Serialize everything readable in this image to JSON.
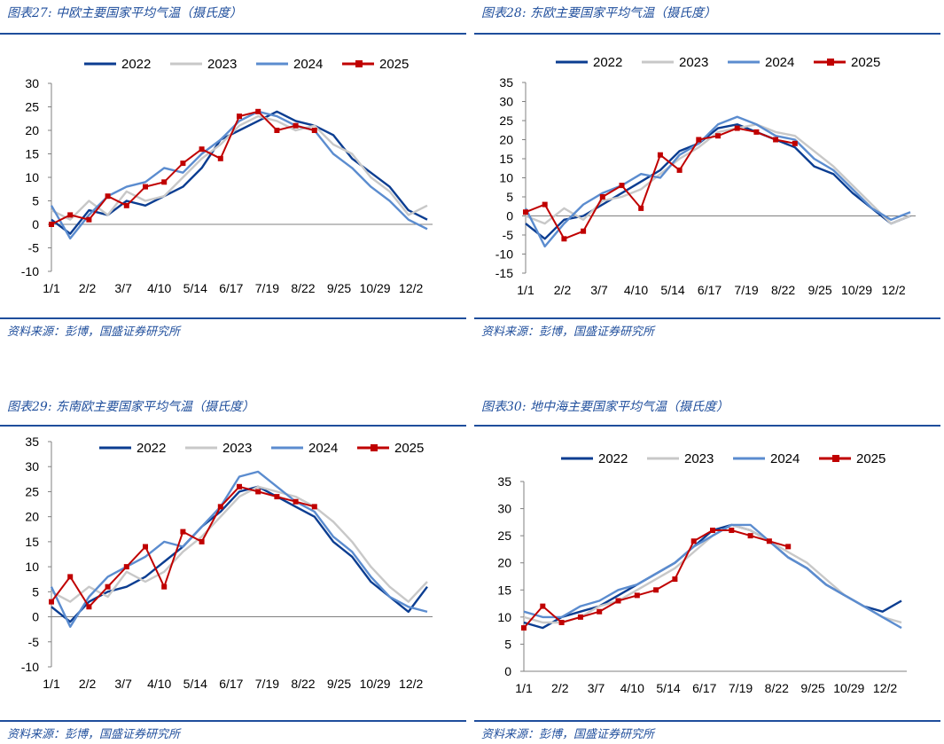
{
  "colors": {
    "s2022": "#0b3d91",
    "s2023": "#c8c8c8",
    "s2024": "#5b8ccf",
    "s2025": "#c00000",
    "accent": "#1f4e9c"
  },
  "panels": [
    {
      "title": "图表27:  中欧主要国家平均气温（摄氏度）",
      "source": "资料来源：彭博，国盛证券研究所"
    },
    {
      "title": "图表28:  东欧主要国家平均气温（摄氏度）",
      "source": "资料来源：彭博，国盛证券研究所"
    },
    {
      "title": "图表29:  东南欧主要国家平均气温（摄氏度）",
      "source": "资料来源：彭博，国盛证券研究所"
    },
    {
      "title": "图表30:  地中海主要国家平均气温（摄氏度）",
      "source": "资料来源：彭博，国盛证券研究所"
    }
  ],
  "chart_data": [
    {
      "type": "line",
      "title": "中欧主要国家平均气温（摄氏度）",
      "x_labels": [
        "1/1",
        "2/2",
        "3/7",
        "4/10",
        "5/14",
        "6/17",
        "7/19",
        "8/22",
        "9/25",
        "10/29",
        "12/2"
      ],
      "ylim": [
        -10,
        30
      ],
      "yticks": [
        -10,
        -5,
        0,
        5,
        10,
        15,
        20,
        25,
        30
      ],
      "series": [
        {
          "name": "2022",
          "values": [
            1,
            -2,
            3,
            2,
            5,
            4,
            6,
            8,
            12,
            18,
            20,
            22,
            24,
            22,
            21,
            19,
            14,
            11,
            8,
            3,
            1
          ]
        },
        {
          "name": "2023",
          "values": [
            3,
            1,
            5,
            2,
            7,
            5,
            6,
            10,
            14,
            17,
            21,
            23,
            22,
            20,
            21,
            17,
            15,
            10,
            7,
            2,
            4
          ]
        },
        {
          "name": "2024",
          "values": [
            4,
            -3,
            2,
            6,
            8,
            9,
            12,
            11,
            15,
            18,
            22,
            24,
            23,
            21,
            20,
            15,
            12,
            8,
            5,
            1,
            -1
          ]
        },
        {
          "name": "2025",
          "values": [
            0,
            2,
            1,
            6,
            4,
            8,
            9,
            13,
            16,
            14,
            23,
            24,
            20,
            21,
            20
          ]
        }
      ]
    },
    {
      "type": "line",
      "title": "东欧主要国家平均气温（摄氏度）",
      "x_labels": [
        "1/1",
        "2/2",
        "3/7",
        "4/10",
        "5/14",
        "6/17",
        "7/19",
        "8/22",
        "9/25",
        "10/29",
        "12/2"
      ],
      "ylim": [
        -15,
        35
      ],
      "yticks": [
        -15,
        -10,
        -5,
        0,
        5,
        10,
        15,
        20,
        25,
        30,
        35
      ],
      "series": [
        {
          "name": "2022",
          "values": [
            -2,
            -6,
            -1,
            0,
            3,
            6,
            9,
            12,
            17,
            19,
            23,
            24,
            22,
            20,
            18,
            13,
            11,
            6,
            2,
            -2,
            0
          ]
        },
        {
          "name": "2023",
          "values": [
            0,
            -2,
            2,
            -1,
            4,
            5,
            7,
            11,
            15,
            18,
            22,
            23,
            24,
            22,
            21,
            17,
            13,
            8,
            3,
            -2,
            0
          ]
        },
        {
          "name": "2024",
          "values": [
            2,
            -8,
            -2,
            3,
            6,
            8,
            11,
            10,
            16,
            19,
            24,
            26,
            24,
            21,
            20,
            15,
            12,
            7,
            2,
            -1,
            1
          ]
        },
        {
          "name": "2025",
          "values": [
            1,
            3,
            -6,
            -4,
            5,
            8,
            2,
            16,
            12,
            20,
            21,
            23,
            22,
            20,
            19
          ]
        }
      ]
    },
    {
      "type": "line",
      "title": "东南欧主要国家平均气温（摄氏度）",
      "x_labels": [
        "1/1",
        "2/2",
        "3/7",
        "4/10",
        "5/14",
        "6/17",
        "7/19",
        "8/22",
        "9/25",
        "10/29",
        "12/2"
      ],
      "ylim": [
        -10,
        35
      ],
      "yticks": [
        -10,
        -5,
        0,
        5,
        10,
        15,
        20,
        25,
        30,
        35
      ],
      "series": [
        {
          "name": "2022",
          "values": [
            2,
            -1,
            3,
            5,
            6,
            8,
            11,
            14,
            18,
            21,
            25,
            26,
            24,
            22,
            20,
            15,
            12,
            7,
            4,
            1,
            6
          ]
        },
        {
          "name": "2023",
          "values": [
            5,
            3,
            6,
            4,
            9,
            7,
            9,
            13,
            16,
            20,
            24,
            26,
            25,
            24,
            22,
            19,
            15,
            10,
            6,
            3,
            7
          ]
        },
        {
          "name": "2024",
          "values": [
            6,
            -2,
            4,
            8,
            10,
            12,
            15,
            14,
            18,
            22,
            28,
            29,
            26,
            23,
            21,
            16,
            13,
            8,
            4,
            2,
            1
          ]
        },
        {
          "name": "2025",
          "values": [
            3,
            8,
            2,
            6,
            10,
            14,
            6,
            17,
            15,
            22,
            26,
            25,
            24,
            23,
            22
          ]
        }
      ]
    },
    {
      "type": "line",
      "title": "地中海主要国家平均气温（摄氏度）",
      "x_labels": [
        "1/1",
        "2/2",
        "3/7",
        "4/10",
        "5/14",
        "6/17",
        "7/19",
        "8/22",
        "9/25",
        "10/29",
        "12/2"
      ],
      "ylim": [
        0,
        35
      ],
      "yticks": [
        0,
        5,
        10,
        15,
        20,
        25,
        30,
        35
      ],
      "series": [
        {
          "name": "2022",
          "values": [
            9,
            8,
            10,
            11,
            12,
            14,
            16,
            18,
            20,
            23,
            26,
            27,
            26,
            24,
            21,
            19,
            16,
            14,
            12,
            11,
            13
          ]
        },
        {
          "name": "2023",
          "values": [
            10,
            9,
            9,
            10,
            12,
            13,
            15,
            17,
            19,
            22,
            25,
            27,
            26,
            24,
            22,
            20,
            17,
            14,
            12,
            10,
            9
          ]
        },
        {
          "name": "2024",
          "values": [
            11,
            10,
            10,
            12,
            13,
            15,
            16,
            18,
            20,
            23,
            25,
            27,
            27,
            24,
            21,
            19,
            16,
            14,
            12,
            10,
            8
          ]
        },
        {
          "name": "2025",
          "values": [
            8,
            12,
            9,
            10,
            11,
            13,
            14,
            15,
            17,
            24,
            26,
            26,
            25,
            24,
            23
          ]
        }
      ]
    }
  ]
}
